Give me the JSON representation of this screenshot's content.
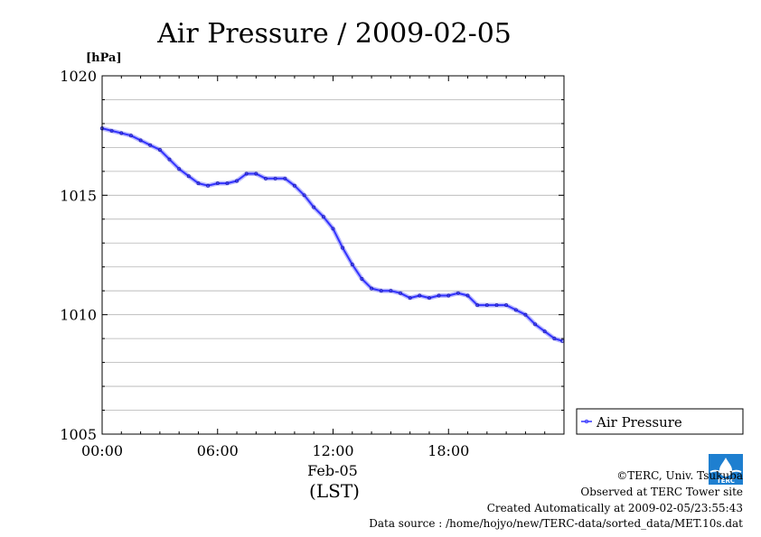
{
  "chart_data": {
    "type": "line",
    "title": "Air Pressure / 2009-02-05",
    "ylabel": "[hPa]",
    "xlabel_date": "Feb-05",
    "xlabel_zone": "(LST)",
    "ylim": [
      1005,
      1020
    ],
    "xlim": [
      "00:00",
      "24:00"
    ],
    "grid": true,
    "legend_position": "right",
    "x_ticks": [
      "00:00",
      "06:00",
      "12:00",
      "18:00"
    ],
    "y_ticks": [
      "1005",
      "1010",
      "1015",
      "1020"
    ],
    "series": [
      {
        "name": "Air Pressure",
        "color": "#3333ff",
        "x": [
          "00:00",
          "00:30",
          "01:00",
          "01:30",
          "02:00",
          "02:30",
          "03:00",
          "03:30",
          "04:00",
          "04:30",
          "05:00",
          "05:30",
          "06:00",
          "06:30",
          "07:00",
          "07:30",
          "08:00",
          "08:30",
          "09:00",
          "09:30",
          "10:00",
          "10:30",
          "11:00",
          "11:30",
          "12:00",
          "12:30",
          "13:00",
          "13:30",
          "14:00",
          "14:30",
          "15:00",
          "15:30",
          "16:00",
          "16:30",
          "17:00",
          "17:30",
          "18:00",
          "18:30",
          "19:00",
          "19:30",
          "20:00",
          "20:30",
          "21:00",
          "21:30",
          "22:00",
          "22:30",
          "23:00",
          "23:30",
          "23:55"
        ],
        "values": [
          1017.8,
          1017.7,
          1017.6,
          1017.5,
          1017.3,
          1017.1,
          1016.9,
          1016.5,
          1016.1,
          1015.8,
          1015.5,
          1015.4,
          1015.5,
          1015.5,
          1015.6,
          1015.9,
          1015.9,
          1015.7,
          1015.7,
          1015.7,
          1015.4,
          1015.0,
          1014.5,
          1014.1,
          1013.6,
          1012.8,
          1012.1,
          1011.5,
          1011.1,
          1011.0,
          1011.0,
          1010.9,
          1010.7,
          1010.8,
          1010.7,
          1010.8,
          1010.8,
          1010.9,
          1010.8,
          1010.4,
          1010.4,
          1010.4,
          1010.4,
          1010.2,
          1010.0,
          1009.6,
          1009.3,
          1009.0,
          1008.9
        ]
      }
    ]
  },
  "logo_text": "TERC",
  "footer": {
    "copyright": "©TERC, Univ. Tsukuba",
    "observed": "Observed at TERC Tower site",
    "created": "Created Automatically at 2009-02-05/23:55:43",
    "source": "Data source : /home/hojyo/new/TERC-data/sorted_data/MET.10s.dat"
  }
}
